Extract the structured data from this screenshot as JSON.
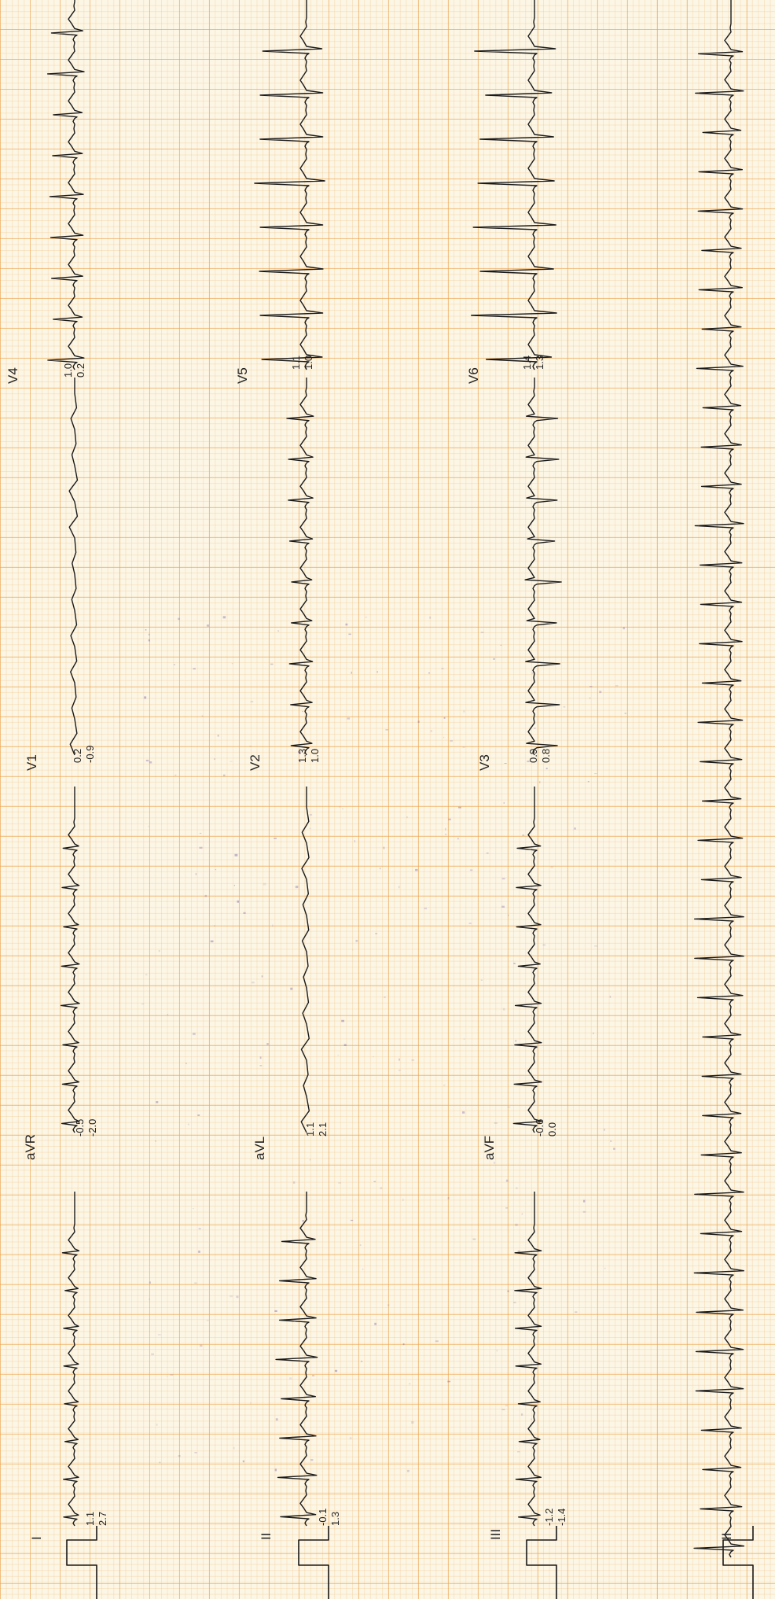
{
  "leads": [
    {
      "label": "I",
      "measurements": [
        "1.1",
        "2.7"
      ]
    },
    {
      "label": "aVR",
      "measurements": [
        "-0.5",
        "-2.0"
      ]
    },
    {
      "label": "V1",
      "measurements": [
        "0.2",
        "-0.9"
      ]
    },
    {
      "label": "V4",
      "measurements": [
        "1.0",
        "0.2"
      ]
    },
    {
      "label": "II",
      "measurements": [
        "-0.1",
        "1.3"
      ]
    },
    {
      "label": "aVL",
      "measurements": [
        "1.1",
        "2.1"
      ]
    },
    {
      "label": "V2",
      "measurements": [
        "1.3",
        "1.0"
      ]
    },
    {
      "label": "V5",
      "measurements": [
        "1.1",
        "1.0"
      ]
    },
    {
      "label": "III",
      "measurements": [
        "-1.2",
        "-1.4"
      ]
    },
    {
      "label": "aVF",
      "measurements": [
        "-0.6",
        "0.0"
      ]
    },
    {
      "label": "V3",
      "measurements": [
        "0.9",
        "0.8"
      ]
    },
    {
      "label": "V6",
      "measurements": [
        "1.4",
        "1.3"
      ]
    },
    {
      "label": "II",
      "measurements": []
    }
  ],
  "colors": {
    "paper": "#fcf6e6",
    "grid_major": "#eca046",
    "grid_minor": "#f0be78",
    "trace": "#1a1a1a",
    "noise": "#8a6fa6"
  }
}
